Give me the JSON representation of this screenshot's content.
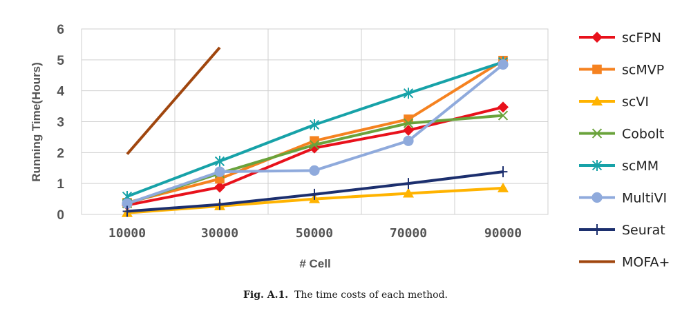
{
  "chart_data": {
    "type": "line",
    "xlabel": "# Cell",
    "ylabel": "Running Time(Hours)",
    "categories": [
      "10000",
      "30000",
      "50000",
      "70000",
      "90000"
    ],
    "ylim": [
      0,
      6
    ],
    "yticks": [
      0,
      1,
      2,
      3,
      4,
      5,
      6
    ],
    "grid": true,
    "legend_position": "right",
    "series": [
      {
        "name": "scFPN",
        "color": "#e8111b",
        "marker": "diamond",
        "values": [
          0.3,
          0.88,
          2.15,
          2.72,
          3.47
        ]
      },
      {
        "name": "scMVP",
        "color": "#f58220",
        "marker": "square",
        "values": [
          0.38,
          1.15,
          2.38,
          3.08,
          4.98
        ]
      },
      {
        "name": "scVI",
        "color": "#ffb300",
        "marker": "triangle",
        "values": [
          0.05,
          0.27,
          0.5,
          0.68,
          0.85
        ]
      },
      {
        "name": "Cobolt",
        "color": "#6aa33b",
        "marker": "x",
        "values": [
          0.35,
          1.33,
          2.25,
          2.95,
          3.2
        ]
      },
      {
        "name": "scMM",
        "color": "#17a2a8",
        "marker": "asterisk",
        "values": [
          0.58,
          1.72,
          2.9,
          3.92,
          4.93
        ]
      },
      {
        "name": "MultiVI",
        "color": "#8faadc",
        "marker": "circle",
        "values": [
          0.35,
          1.38,
          1.42,
          2.38,
          4.85
        ]
      },
      {
        "name": "Seurat",
        "color": "#1c2f6e",
        "marker": "plus",
        "values": [
          0.1,
          0.32,
          0.65,
          1.0,
          1.38
        ]
      },
      {
        "name": "MOFA+",
        "color": "#a0460e",
        "marker": "none",
        "values": [
          1.95,
          5.4,
          null,
          null,
          null
        ]
      }
    ]
  },
  "caption": {
    "label": "Fig. A.1.",
    "text": "The time costs of each method."
  }
}
